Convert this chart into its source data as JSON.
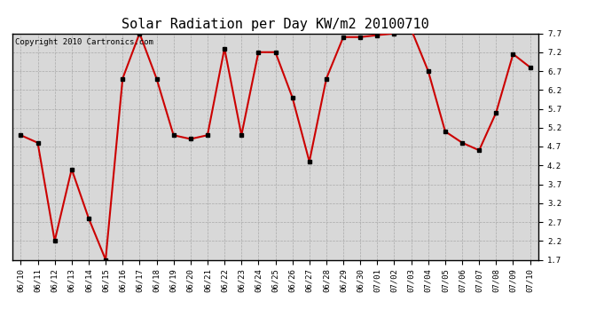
{
  "title": "Solar Radiation per Day KW/m2 20100710",
  "copyright_text": "Copyright 2010 Cartronics.com",
  "labels": [
    "06/10",
    "06/11",
    "06/12",
    "06/13",
    "06/14",
    "06/15",
    "06/16",
    "06/17",
    "06/18",
    "06/19",
    "06/20",
    "06/21",
    "06/22",
    "06/23",
    "06/24",
    "06/25",
    "06/26",
    "06/27",
    "06/28",
    "06/29",
    "06/30",
    "07/01",
    "07/02",
    "07/03",
    "07/04",
    "07/05",
    "07/06",
    "07/07",
    "07/08",
    "07/09",
    "07/10"
  ],
  "values": [
    5.0,
    4.8,
    2.2,
    4.1,
    2.8,
    1.7,
    6.5,
    7.7,
    6.5,
    5.0,
    4.9,
    5.0,
    7.3,
    5.0,
    7.2,
    7.2,
    6.0,
    4.3,
    6.5,
    7.6,
    7.6,
    7.65,
    7.7,
    7.8,
    6.7,
    5.1,
    4.8,
    4.6,
    5.6,
    7.15,
    6.8
  ],
  "line_color": "#cc0000",
  "marker_color": "#000000",
  "bg_color": "#ffffff",
  "plot_bg_color": "#d8d8d8",
  "grid_color": "#aaaaaa",
  "ylim": [
    1.7,
    7.7
  ],
  "yticks": [
    1.7,
    2.2,
    2.7,
    3.2,
    3.7,
    4.2,
    4.7,
    5.2,
    5.7,
    6.2,
    6.7,
    7.2,
    7.7
  ],
  "title_fontsize": 11,
  "copyright_fontsize": 6.5,
  "tick_fontsize": 6.5,
  "line_width": 1.5,
  "marker_size": 3
}
